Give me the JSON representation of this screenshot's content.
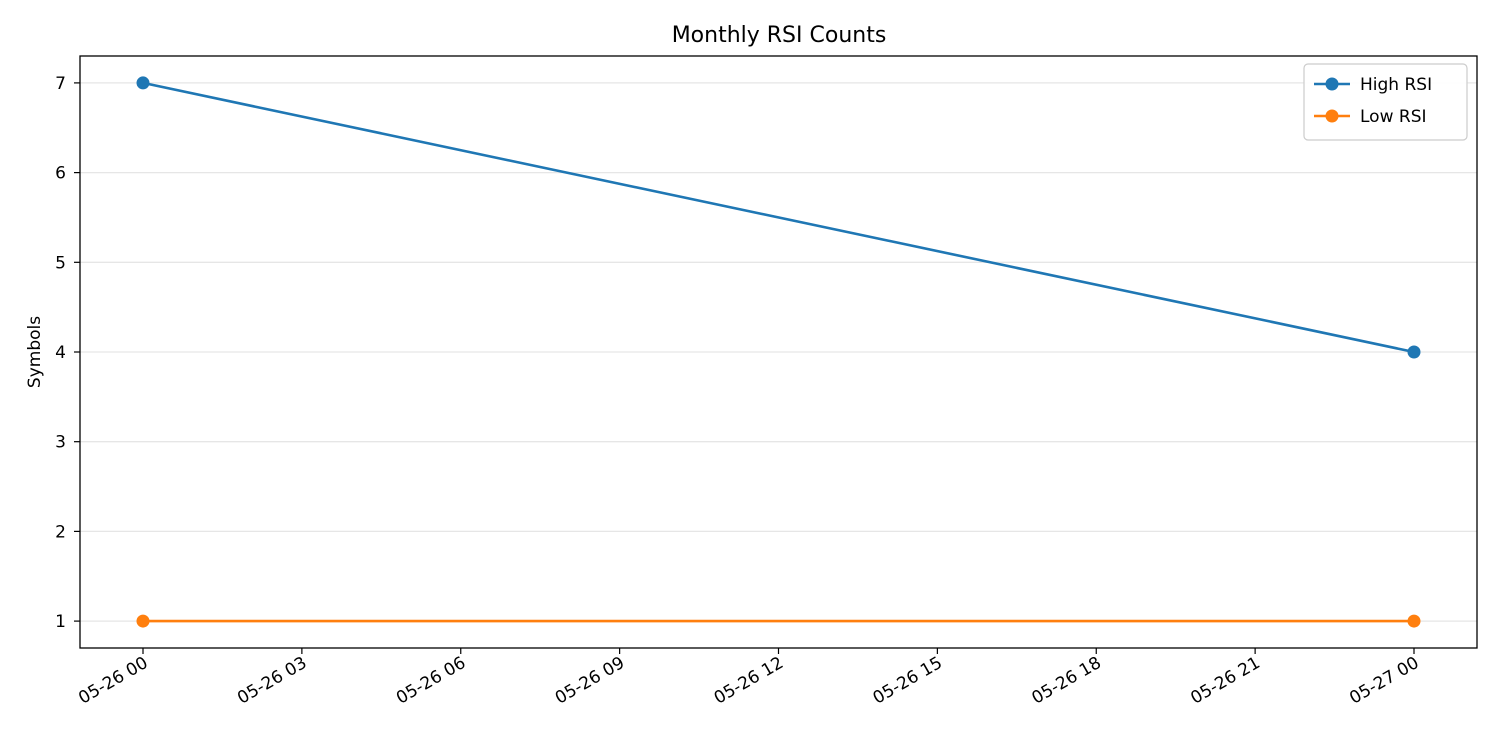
{
  "chart_data": {
    "type": "line",
    "title": "Monthly RSI Counts",
    "xlabel": "",
    "ylabel": "Symbols",
    "x": [
      "05-26 00",
      "05-27 00"
    ],
    "x_ticks": [
      "05-26 00",
      "05-26 03",
      "05-26 06",
      "05-26 09",
      "05-26 12",
      "05-26 15",
      "05-26 18",
      "05-26 21",
      "05-27 00"
    ],
    "y_ticks": [
      1,
      2,
      3,
      4,
      5,
      6,
      7
    ],
    "ylim": [
      0.7,
      7.3
    ],
    "grid": "horizontal",
    "legend_position": "top-right",
    "series": [
      {
        "name": "High RSI",
        "color": "#1f77b4",
        "values": [
          7,
          4
        ]
      },
      {
        "name": "Low RSI",
        "color": "#ff7f0e",
        "values": [
          1,
          1
        ]
      }
    ]
  }
}
